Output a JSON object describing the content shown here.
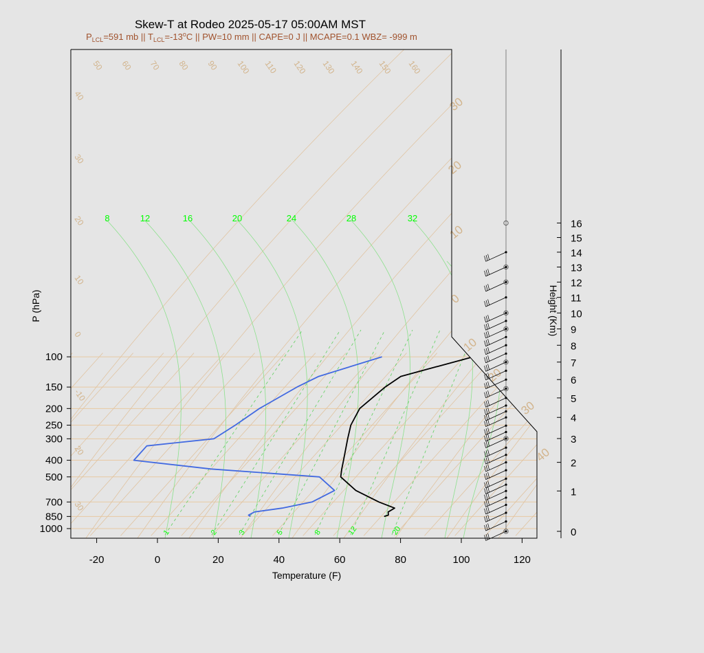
{
  "title": "Skew-T at Rodeo 2025-05-17 05:00AM MST",
  "subtitle": {
    "plcl_pre": "P",
    "plcl_sub": "LCL",
    "plcl_val": "=591 mb || ",
    "tlcl_pre": "T",
    "tlcl_sub": "LCL",
    "tlcl_val": "=-13",
    "tlcl_sup": "o",
    "rest": "C || PW=10 mm || CAPE=0 J || MCAPE=0.1 WBZ= -999 m"
  },
  "chart_data": {
    "type": "skew-t",
    "xlabel": "Temperature (F)",
    "ylabel": "P (hPa)",
    "y2label": "Height (Km)",
    "x_ticks": [
      -20,
      0,
      20,
      40,
      60,
      80,
      100,
      120
    ],
    "p_ticks": [
      100,
      150,
      200,
      250,
      300,
      400,
      500,
      700,
      850,
      1000
    ],
    "height_ticks": [
      0,
      1,
      2,
      3,
      4,
      5,
      6,
      7,
      8,
      9,
      10,
      11,
      12,
      13,
      14,
      15,
      16
    ],
    "isotherm_labels_top": [
      "50",
      "60",
      "70",
      "80",
      "90",
      "100",
      "110",
      "120",
      "130",
      "140",
      "150",
      "160"
    ],
    "isotherm_labels_left": [
      "40",
      "30",
      "20",
      "10",
      "0",
      "-10",
      "20",
      "30"
    ],
    "mixing_ratio_top_labels": [
      "8",
      "12",
      "16",
      "20",
      "24",
      "28",
      "32"
    ],
    "mixing_ratio_bottom_labels": [
      "1",
      "2",
      "3",
      "5",
      "8",
      "12",
      "20"
    ],
    "dry_adiabat_labels": [
      "30",
      "20",
      "10",
      "0",
      "10",
      "20",
      "30",
      "40"
    ],
    "temperature_F": [
      [
        850,
        71
      ],
      [
        835,
        72
      ],
      [
        800,
        71
      ],
      [
        760,
        72
      ],
      [
        700,
        65
      ],
      [
        600,
        54
      ],
      [
        500,
        45
      ],
      [
        450,
        43
      ],
      [
        400,
        41
      ],
      [
        300,
        36
      ],
      [
        250,
        33
      ],
      [
        200,
        31
      ],
      [
        150,
        33
      ],
      [
        130,
        35
      ],
      [
        100,
        53
      ]
    ],
    "dewpoint_F": [
      [
        850,
        27
      ],
      [
        835,
        26
      ],
      [
        800,
        27
      ],
      [
        760,
        35
      ],
      [
        700,
        43
      ],
      [
        600,
        47
      ],
      [
        500,
        38
      ],
      [
        450,
        0
      ],
      [
        400,
        -28
      ],
      [
        330,
        -28
      ],
      [
        300,
        -8
      ],
      [
        250,
        -5
      ],
      [
        200,
        -2
      ],
      [
        150,
        4
      ],
      [
        130,
        8
      ],
      [
        100,
        23
      ]
    ],
    "wind_heights_km": [
      0.0,
      0.2,
      0.4,
      0.6,
      0.8,
      1.0,
      1.2,
      1.4,
      1.7,
      2.0,
      2.3,
      2.6,
      3.0,
      3.3,
      3.6,
      4.0,
      4.3,
      4.6,
      5.0,
      5.5,
      6.0,
      6.5,
      7.0,
      7.5,
      8.0,
      8.5,
      9.0,
      9.5,
      10.0,
      11.0,
      12.0,
      13.0,
      14.0
    ]
  }
}
